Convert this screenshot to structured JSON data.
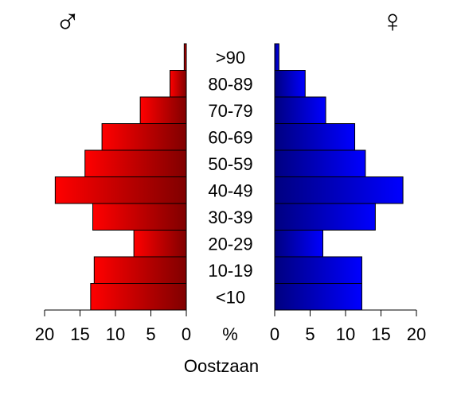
{
  "chart_data": {
    "type": "bar",
    "title": "Oostzaan",
    "male_symbol": "♂",
    "female_symbol": "♀",
    "unit_label": "%",
    "categories": [
      "<10",
      "10-19",
      "20-29",
      "30-39",
      "40-49",
      "50-59",
      "60-69",
      "70-79",
      "80-89",
      ">90"
    ],
    "series": [
      {
        "name": "♂",
        "values": [
          13.5,
          13.0,
          7.4,
          13.2,
          18.5,
          14.3,
          11.9,
          6.5,
          2.3,
          0.3
        ]
      },
      {
        "name": "♀",
        "values": [
          12.3,
          12.3,
          6.8,
          14.2,
          18.1,
          12.8,
          11.3,
          7.2,
          4.3,
          0.6
        ]
      }
    ],
    "xlim": [
      0,
      20
    ],
    "xticks": [
      20,
      15,
      10,
      5,
      0
    ],
    "colors": {
      "male_outer": "#ff0000",
      "male_inner": "#800000",
      "female_inner": "#000080",
      "female_outer": "#0000ff"
    }
  }
}
